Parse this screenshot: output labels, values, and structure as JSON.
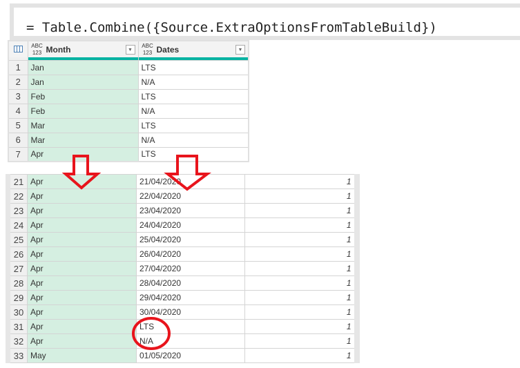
{
  "formula_bar": {
    "text": "= Table.Combine({Source.ExtraOptionsFromTableBuild})"
  },
  "top_table": {
    "columns": [
      {
        "type": "ABC 123",
        "label": "Month"
      },
      {
        "type": "ABC 123",
        "label": "Dates"
      }
    ],
    "rows": [
      [
        "1",
        "Jan",
        "LTS"
      ],
      [
        "2",
        "Jan",
        "N/A"
      ],
      [
        "3",
        "Feb",
        "LTS"
      ],
      [
        "4",
        "Feb",
        "N/A"
      ],
      [
        "5",
        "Mar",
        "LTS"
      ],
      [
        "6",
        "Mar",
        "N/A"
      ],
      [
        "7",
        "Apr",
        "LTS"
      ]
    ]
  },
  "bottom_table": {
    "rows": [
      [
        "21",
        "Apr",
        "21/04/2020",
        "1"
      ],
      [
        "22",
        "Apr",
        "22/04/2020",
        "1"
      ],
      [
        "23",
        "Apr",
        "23/04/2020",
        "1"
      ],
      [
        "24",
        "Apr",
        "24/04/2020",
        "1"
      ],
      [
        "25",
        "Apr",
        "25/04/2020",
        "1"
      ],
      [
        "26",
        "Apr",
        "26/04/2020",
        "1"
      ],
      [
        "27",
        "Apr",
        "27/04/2020",
        "1"
      ],
      [
        "28",
        "Apr",
        "28/04/2020",
        "1"
      ],
      [
        "29",
        "Apr",
        "29/04/2020",
        "1"
      ],
      [
        "30",
        "Apr",
        "30/04/2020",
        "1"
      ],
      [
        "31",
        "Apr",
        "LTS",
        "1"
      ],
      [
        "32",
        "Apr",
        "N/A",
        "1"
      ],
      [
        "33",
        "May",
        "01/05/2020",
        "1"
      ]
    ]
  },
  "annotations": {
    "color": "#e8141c",
    "icons": [
      "arrow-down-icon",
      "arrow-down-icon",
      "circle-highlight"
    ]
  }
}
